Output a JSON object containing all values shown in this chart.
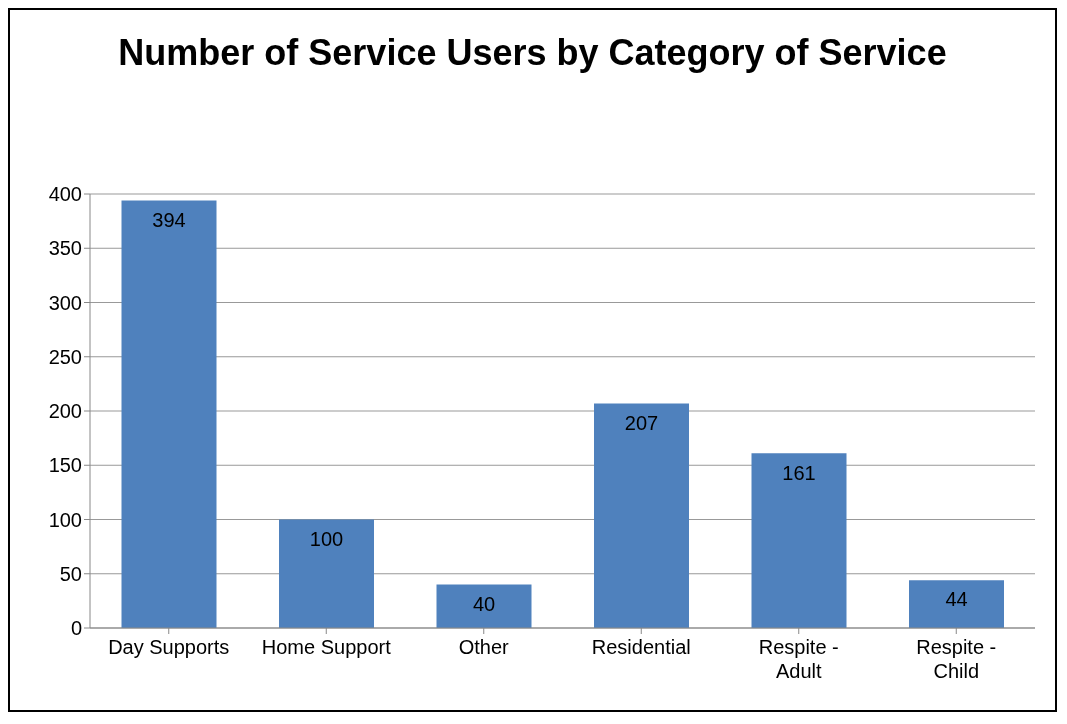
{
  "chart_data": {
    "type": "bar",
    "title": "Number of Service Users by Category of Service",
    "categories": [
      "Day Supports",
      "Home Support",
      "Other",
      "Residential",
      "Respite - Adult",
      "Respite - Child"
    ],
    "values": [
      394,
      100,
      40,
      207,
      161,
      44
    ],
    "color": "#4f81bd",
    "ylim": [
      0,
      400
    ],
    "yticks": [
      0,
      50,
      100,
      150,
      200,
      250,
      300,
      350,
      400
    ],
    "grid": "y",
    "data_labels": true
  }
}
